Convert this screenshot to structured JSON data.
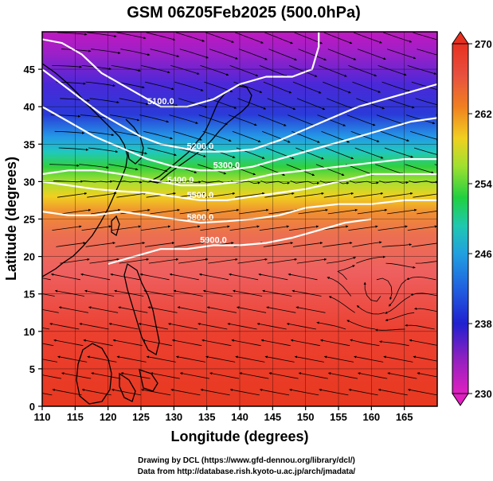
{
  "chart_data": {
    "type": "heatmap",
    "title": "GSM 06Z05Feb2025 (500.0hPa)",
    "xlabel": "Longitude (degrees)",
    "ylabel": "Latitude  (degrees)",
    "xlim": [
      110,
      170
    ],
    "ylim": [
      0,
      50
    ],
    "x_ticks": [
      "110",
      "115",
      "120",
      "125",
      "130",
      "135",
      "140",
      "145",
      "150",
      "155",
      "160",
      "165"
    ],
    "y_ticks": [
      "0",
      "5",
      "10",
      "15",
      "20",
      "25",
      "30",
      "35",
      "40",
      "45"
    ],
    "colorbar": {
      "min": 230,
      "max": 270,
      "tick_labels": [
        "270",
        "262",
        "254",
        "246",
        "238",
        "230"
      ],
      "colors": [
        "#e020c0",
        "#9020c0",
        "#2020d0",
        "#2090e0",
        "#20c0c0",
        "#20d040",
        "#a0e030",
        "#e0d020",
        "#f08020",
        "#e84040",
        "#e83020"
      ]
    },
    "temperature_field_by_latitude": [
      {
        "lat": 50,
        "value": 231
      },
      {
        "lat": 46,
        "value": 234
      },
      {
        "lat": 42,
        "value": 238
      },
      {
        "lat": 38,
        "value": 244
      },
      {
        "lat": 35,
        "value": 250
      },
      {
        "lat": 32,
        "value": 255
      },
      {
        "lat": 29,
        "value": 259
      },
      {
        "lat": 25,
        "value": 262
      },
      {
        "lat": 20,
        "value": 266
      },
      {
        "lat": 10,
        "value": 268
      },
      {
        "lat": 0,
        "value": 269
      }
    ],
    "height_contours": [
      {
        "label": "5100.0",
        "points": [
          [
            110,
            49
          ],
          [
            113,
            48.5
          ],
          [
            116,
            47
          ],
          [
            119,
            44.5
          ],
          [
            122,
            43
          ],
          [
            125,
            41.5
          ],
          [
            128,
            40
          ],
          [
            132,
            40
          ],
          [
            136,
            41
          ],
          [
            140,
            43
          ],
          [
            144,
            44
          ],
          [
            148,
            44
          ],
          [
            151,
            45
          ],
          [
            152,
            48
          ],
          [
            152,
            50
          ]
        ]
      },
      {
        "label": "5200.0",
        "points": [
          [
            110,
            45
          ],
          [
            113,
            43
          ],
          [
            116,
            41
          ],
          [
            119,
            39
          ],
          [
            122,
            37.5
          ],
          [
            125,
            36
          ],
          [
            128,
            35
          ],
          [
            131,
            34.5
          ],
          [
            134,
            34
          ],
          [
            138,
            34
          ],
          [
            142,
            34.3
          ],
          [
            146,
            35.5
          ],
          [
            150,
            37
          ],
          [
            154,
            38.5
          ],
          [
            158,
            40
          ],
          [
            162,
            41
          ],
          [
            166,
            42
          ],
          [
            170,
            43
          ]
        ]
      },
      {
        "label": "5300.0",
        "points": [
          [
            110,
            40
          ],
          [
            114,
            38
          ],
          [
            118,
            36
          ],
          [
            122,
            34.5
          ],
          [
            126,
            33
          ],
          [
            130,
            32
          ],
          [
            134,
            31.5
          ],
          [
            138,
            31.5
          ],
          [
            142,
            32
          ],
          [
            146,
            33
          ],
          [
            150,
            34
          ],
          [
            154,
            35
          ],
          [
            158,
            36
          ],
          [
            162,
            37
          ],
          [
            166,
            38
          ],
          [
            170,
            38.5
          ]
        ]
      },
      {
        "label": "5400.0",
        "points": [
          [
            110,
            31
          ],
          [
            114,
            31.5
          ],
          [
            118,
            31.5
          ],
          [
            122,
            31
          ],
          [
            125,
            30.5
          ],
          [
            128,
            30
          ],
          [
            131,
            29.5
          ],
          [
            135,
            29.5
          ],
          [
            140,
            30
          ],
          [
            145,
            31
          ],
          [
            150,
            31.5
          ],
          [
            155,
            32
          ],
          [
            160,
            32.5
          ],
          [
            165,
            33
          ],
          [
            170,
            33
          ]
        ]
      },
      {
        "label": "5500.0",
        "points": [
          [
            110,
            30
          ],
          [
            114,
            29.5
          ],
          [
            118,
            29
          ],
          [
            122,
            28.7
          ],
          [
            126,
            28.5
          ],
          [
            130,
            28
          ],
          [
            134,
            27.5
          ],
          [
            138,
            27.5
          ],
          [
            142,
            28
          ],
          [
            146,
            28.5
          ],
          [
            150,
            29
          ],
          [
            155,
            30
          ],
          [
            160,
            31
          ],
          [
            165,
            31
          ],
          [
            170,
            31
          ]
        ]
      },
      {
        "label": "5800.0",
        "points": [
          [
            110,
            26
          ],
          [
            114,
            25.5
          ],
          [
            118,
            25.5
          ],
          [
            122,
            26
          ],
          [
            126,
            25.5
          ],
          [
            130,
            25
          ],
          [
            134,
            24.5
          ],
          [
            138,
            24.7
          ],
          [
            142,
            25
          ],
          [
            146,
            25.5
          ],
          [
            150,
            26.5
          ],
          [
            155,
            27
          ],
          [
            160,
            27
          ],
          [
            165,
            27.5
          ],
          [
            170,
            27.5
          ]
        ]
      },
      {
        "label": "5900.0",
        "points": [
          [
            120,
            19
          ],
          [
            124,
            20
          ],
          [
            128,
            21
          ],
          [
            132,
            21
          ],
          [
            136,
            21.5
          ],
          [
            140,
            21.5
          ],
          [
            144,
            21.8
          ],
          [
            148,
            22.5
          ],
          [
            152,
            23.5
          ],
          [
            156,
            24.5
          ],
          [
            160,
            25
          ]
        ]
      }
    ],
    "wind_streamlines": "southwesterly to westerly flow",
    "colors": {
      "contour": "#ffffff",
      "arrows": "#000000",
      "grid": "#000000"
    }
  },
  "credits": {
    "line1": "Drawing by DCL (https://www.gfd-dennou.org/library/dcl/)",
    "line2": "Data from http://database.rish.kyoto-u.ac.jp/arch/jmadata/"
  }
}
